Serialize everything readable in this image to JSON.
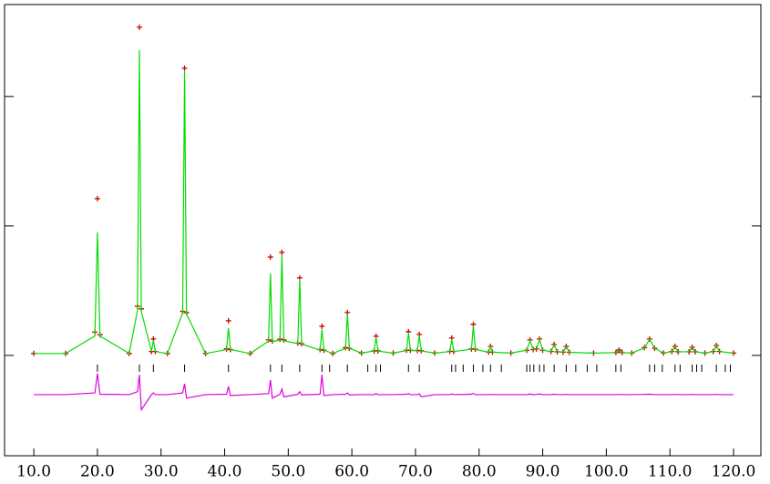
{
  "chart_data": {
    "type": "line",
    "x": [
      10,
      15,
      19.6,
      20.0,
      20.4,
      25,
      26.3,
      26.6,
      26.9,
      28.5,
      28.8,
      29.1,
      31,
      33.4,
      33.7,
      34.0,
      37,
      40.3,
      40.6,
      40.9,
      44,
      46.9,
      47.2,
      47.5,
      48.7,
      49.0,
      49.3,
      51.5,
      51.8,
      52.1,
      55.0,
      55.3,
      55.6,
      57,
      59.0,
      59.3,
      59.6,
      61.5,
      63.5,
      63.8,
      64.1,
      66.5,
      68.6,
      68.9,
      69.2,
      70.3,
      70.6,
      70.9,
      73,
      75.4,
      75.7,
      76.0,
      78.8,
      79.1,
      79.4,
      81.5,
      81.8,
      82.1,
      85,
      87.5,
      88.0,
      88.5,
      89.0,
      89.5,
      90.0,
      91.3,
      91.8,
      92.3,
      93.2,
      93.7,
      94.2,
      98,
      101.5,
      102.0,
      102.5,
      104,
      106.0,
      106.8,
      107.6,
      109,
      110.3,
      110.8,
      111.3,
      113.0,
      113.5,
      114.0,
      115.5,
      116.8,
      117.3,
      117.8,
      120
    ],
    "series": [
      {
        "color": "#cc0000",
        "marker": "cross",
        "values": [
          15,
          15,
          180,
          1211,
          160,
          15,
          380,
          2535,
          360,
          30,
          127,
          30,
          15,
          340,
          2218,
          330,
          15,
          50,
          268,
          45,
          15,
          120,
          760,
          110,
          125,
          796,
          120,
          95,
          599,
          90,
          45,
          225,
          40,
          15,
          60,
          331,
          55,
          18,
          35,
          148,
          35,
          18,
          40,
          183,
          40,
          38,
          162,
          36,
          18,
          32,
          134,
          30,
          50,
          240,
          48,
          25,
          70,
          25,
          18,
          40,
          120,
          45,
          50,
          127,
          40,
          30,
          85,
          28,
          25,
          70,
          24,
          18,
          22,
          42,
          22,
          18,
          60,
          127,
          55,
          18,
          30,
          70,
          28,
          28,
          63,
          28,
          18,
          30,
          77,
          30,
          18
        ]
      },
      {
        "color": "#00dd00",
        "values": [
          15,
          15,
          150,
          950,
          150,
          15,
          350,
          2359,
          340,
          30,
          115,
          30,
          15,
          330,
          2204,
          320,
          15,
          45,
          211,
          45,
          15,
          110,
          634,
          105,
          120,
          775,
          115,
          90,
          590,
          88,
          40,
          200,
          40,
          15,
          55,
          320,
          55,
          18,
          35,
          140,
          33,
          18,
          38,
          175,
          38,
          36,
          155,
          35,
          18,
          30,
          128,
          30,
          48,
          230,
          46,
          25,
          68,
          25,
          18,
          40,
          115,
          45,
          48,
          122,
          40,
          30,
          82,
          28,
          25,
          68,
          24,
          18,
          22,
          40,
          22,
          18,
          58,
          124,
          55,
          18,
          30,
          68,
          28,
          28,
          61,
          28,
          18,
          30,
          75,
          30,
          18
        ]
      },
      {
        "color": "#dd00dd",
        "values": [
          -303,
          -303,
          -290,
          -140,
          -300,
          -303,
          -280,
          -150,
          -420,
          -303,
          -290,
          -303,
          -303,
          -290,
          -220,
          -330,
          -303,
          -300,
          -240,
          -310,
          -303,
          -295,
          -190,
          -330,
          -300,
          -260,
          -320,
          -300,
          -280,
          -305,
          -300,
          -150,
          -310,
          -303,
          -300,
          -290,
          -305,
          -303,
          -303,
          -295,
          -303,
          -303,
          -300,
          -295,
          -303,
          -303,
          -296,
          -320,
          -303,
          -303,
          -297,
          -303,
          -300,
          -293,
          -303,
          -303,
          -301,
          -303,
          -303,
          -303,
          -298,
          -303,
          -301,
          -298,
          -303,
          -303,
          -300,
          -303,
          -303,
          -301,
          -303,
          -303,
          -303,
          -301,
          -303,
          -303,
          -301,
          -300,
          -303,
          -303,
          -303,
          -301,
          -303,
          -303,
          -301,
          -303,
          -303,
          -303,
          -301,
          -303,
          -303
        ]
      }
    ],
    "reflections": {
      "color": "#000000",
      "x": [
        20.0,
        26.6,
        28.8,
        33.7,
        40.6,
        47.2,
        49.0,
        51.8,
        55.3,
        56.5,
        59.3,
        62.5,
        63.8,
        64.5,
        68.9,
        70.6,
        75.7,
        76.3,
        77.5,
        79.1,
        80.6,
        81.8,
        83.5,
        87.5,
        88.0,
        88.6,
        89.5,
        90.2,
        91.8,
        93.7,
        95.2,
        97,
        98.5,
        101.5,
        102.3,
        106.8,
        107.6,
        108.8,
        110.8,
        111.6,
        113.5,
        114.2,
        115,
        117.3,
        118.7,
        119.5
      ]
    },
    "xlim": [
      5.4,
      124.3
    ],
    "xticks": [
      {
        "value": 10,
        "label": "10.0"
      },
      {
        "value": 20,
        "label": "20.0"
      },
      {
        "value": 30,
        "label": "30.0"
      },
      {
        "value": 40,
        "label": "40.0"
      },
      {
        "value": 50,
        "label": "50.0"
      },
      {
        "value": 60,
        "label": "60.0"
      },
      {
        "value": 70,
        "label": "70.0"
      },
      {
        "value": 80,
        "label": "80.0"
      },
      {
        "value": 90,
        "label": "90.0"
      },
      {
        "value": 100,
        "label": "100.0"
      },
      {
        "value": 110,
        "label": "110.0"
      },
      {
        "value": 120,
        "label": "120.0"
      }
    ],
    "ylim": [
      -775,
      2710
    ],
    "yticks": [
      0,
      1000,
      2000
    ]
  }
}
